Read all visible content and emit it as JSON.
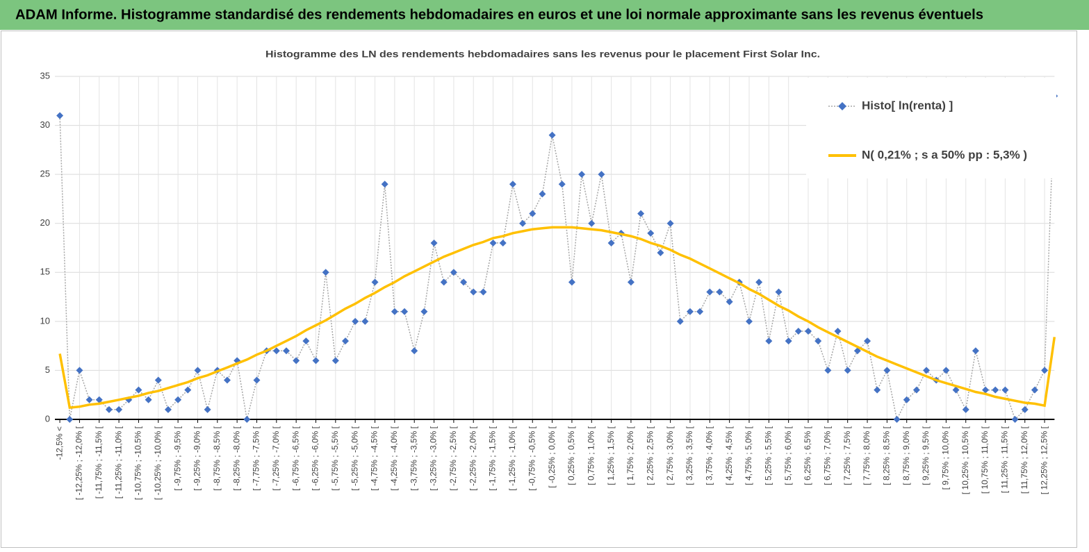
{
  "header": {
    "title": "ADAM Informe. Histogramme standardisé des rendements hebdomadaires en euros et une loi normale approximante sans les revenus éventuels"
  },
  "chart_data": {
    "type": "line",
    "title": "Histogramme  des LN des rendements  hebdomadaires sans les revenus pour  le placement First  Solar Inc.",
    "categories": [
      "-12,5% <",
      null,
      "[ -12,25% ; -12,0% [",
      null,
      "[ -11,75% ; -11,5% [",
      null,
      "[ -11,25% ; -11,0% [",
      null,
      "[ -10,75% ; -10,5% [",
      null,
      "[ -10,25% ; -10,0% [",
      null,
      "[ -9,75% ; -9,5% [",
      null,
      "[ -9,25% ; -9,0% [",
      null,
      "[ -8,75% ; -8,5% [",
      null,
      "[ -8,25% ; -8,0% [",
      null,
      "[ -7,75% ; -7,5% [",
      null,
      "[ -7,25% ; -7,0% [",
      null,
      "[ -6,75% ; -6,5% [",
      null,
      "[ -6,25% ; -6,0% [",
      null,
      "[ -5,75% ; -5,5% [",
      null,
      "[ -5,25% ; -5,0% [",
      null,
      "[ -4,75% ; -4,5% [",
      null,
      "[ -4,25% ; -4,0% [",
      null,
      "[ -3,75% ; -3,5% [",
      null,
      "[ -3,25% ; -3,0% [",
      null,
      "[ -2,75% ; -2,5% [",
      null,
      "[ -2,25% ; -2,0% [",
      null,
      "[ -1,75% ; -1,5% [",
      null,
      "[ -1,25% ; -1,0% [",
      null,
      "[ -0,75% ; -0,5% [",
      null,
      "[ -0,25% ; 0,0% [",
      null,
      "[ 0,25% ; 0,5% [",
      null,
      "[ 0,75% ; 1,0% [",
      null,
      "[ 1,25% ; 1,5% [",
      null,
      "[ 1,75% ; 2,0% [",
      null,
      "[ 2,25% ; 2,5% [",
      null,
      "[ 2,75% ; 3,0% [",
      null,
      "[ 3,25% ; 3,5% [",
      null,
      "[ 3,75% ; 4,0% [",
      null,
      "[ 4,25% ; 4,5% [",
      null,
      "[ 4,75% ; 5,0% [",
      null,
      "[ 5,25% ; 5,5% [",
      null,
      "[ 5,75% ; 6,0% [",
      null,
      "[ 6,25% ; 6,5% [",
      null,
      "[ 6,75% ; 7,0% [",
      null,
      "[ 7,25% ; 7,5% [",
      null,
      "[ 7,75% ; 8,0% [",
      null,
      "[ 8,25% ; 8,5% [",
      null,
      "[ 8,75% ; 9,0% [",
      null,
      "[ 9,25% ; 9,5% [",
      null,
      "[ 9,75% ; 10,0% [",
      null,
      "[ 10,25% ; 10,5% [",
      null,
      "[ 10,75% ; 11,0% [",
      null,
      "[ 11,25% ; 11,5% [",
      null,
      "[ 11,75% ; 12,0% [",
      null,
      "[ 12,25% ; 12,5% [",
      null
    ],
    "series": [
      {
        "name": "Histo[ ln(renta) ]",
        "color": "#4472c4",
        "line_color": "#a5a5a5",
        "marker": "diamond",
        "values": [
          31,
          0,
          5,
          2,
          2,
          1,
          1,
          2,
          3,
          2,
          4,
          1,
          2,
          3,
          5,
          1,
          5,
          4,
          6,
          0,
          4,
          7,
          7,
          7,
          6,
          8,
          6,
          15,
          6,
          8,
          10,
          10,
          14,
          24,
          11,
          11,
          7,
          11,
          18,
          14,
          15,
          14,
          13,
          13,
          18,
          18,
          24,
          20,
          21,
          23,
          29,
          24,
          14,
          25,
          20,
          25,
          18,
          19,
          14,
          21,
          19,
          17,
          20,
          10,
          11,
          11,
          13,
          13,
          12,
          14,
          10,
          14,
          8,
          13,
          8,
          9,
          9,
          8,
          5,
          9,
          5,
          7,
          8,
          3,
          5,
          0,
          2,
          3,
          5,
          4,
          5,
          3,
          1,
          7,
          3,
          3,
          3,
          0,
          1,
          3,
          5,
          33
        ]
      },
      {
        "name": "N( 0,21% ; s a 50% pp : 5,3% )",
        "color": "#ffc000",
        "values": [
          6.7,
          1.2,
          1.3,
          1.5,
          1.6,
          1.8,
          2.0,
          2.2,
          2.4,
          2.7,
          2.9,
          3.2,
          3.5,
          3.8,
          4.2,
          4.5,
          4.9,
          5.3,
          5.7,
          6.1,
          6.6,
          7.0,
          7.5,
          8.0,
          8.5,
          9.1,
          9.6,
          10.1,
          10.7,
          11.3,
          11.8,
          12.4,
          12.9,
          13.5,
          14.0,
          14.6,
          15.1,
          15.6,
          16.1,
          16.6,
          17.0,
          17.4,
          17.8,
          18.1,
          18.5,
          18.7,
          19.0,
          19.2,
          19.4,
          19.5,
          19.6,
          19.6,
          19.6,
          19.5,
          19.4,
          19.3,
          19.1,
          18.9,
          18.7,
          18.4,
          18.0,
          17.7,
          17.3,
          16.8,
          16.4,
          15.9,
          15.4,
          14.9,
          14.4,
          13.9,
          13.3,
          12.8,
          12.2,
          11.6,
          11.1,
          10.5,
          10.0,
          9.4,
          8.9,
          8.4,
          7.9,
          7.4,
          6.9,
          6.4,
          6.0,
          5.6,
          5.2,
          4.8,
          4.4,
          4.0,
          3.7,
          3.4,
          3.1,
          2.8,
          2.6,
          2.3,
          2.1,
          1.9,
          1.7,
          1.6,
          1.4,
          8.4
        ]
      }
    ],
    "ylim": [
      0,
      35
    ],
    "yticks": [
      0,
      5,
      10,
      15,
      20,
      25,
      30,
      35
    ],
    "grid": true,
    "legend": "top-right"
  }
}
